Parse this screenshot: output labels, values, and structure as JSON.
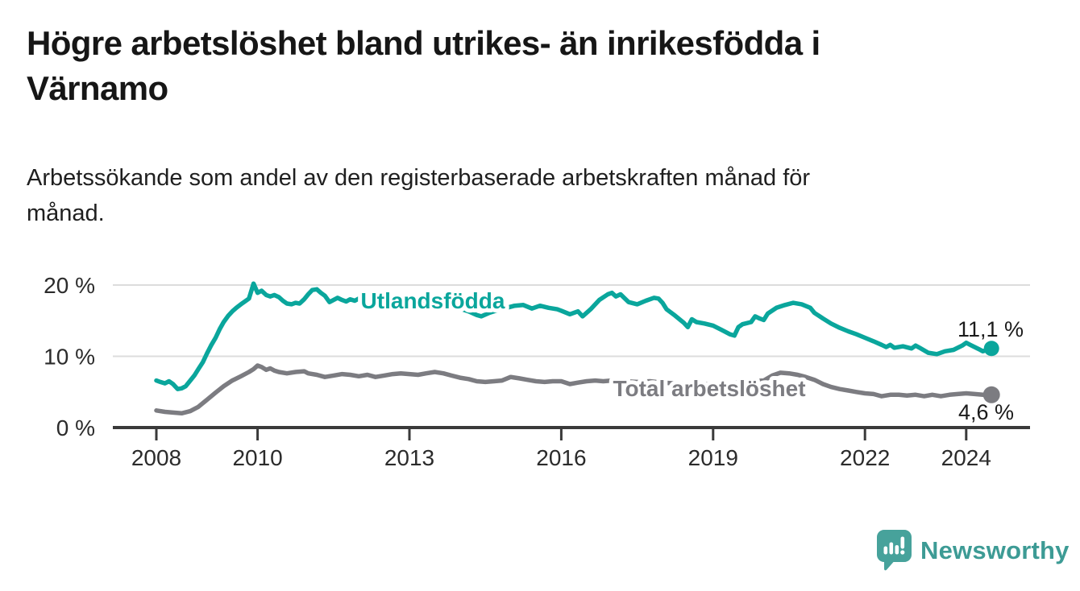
{
  "title": "Högre arbetslöshet bland utrikes- än inrikesfödda i\nVärnamo",
  "subtitle": "Arbetssökande som andel av den registerbaserade arbetskraften månad för\nmånad.",
  "branding": {
    "logo_text": "Newsworthy",
    "logo_icon": "speech-bubble-bar-chart-icon",
    "icon_color": "#47a29b",
    "text_color": "#3d9b95"
  },
  "colors": {
    "foreign_born_line": "#0aa69c",
    "total_line": "#7c7c81",
    "grid": "#dcdcdc",
    "axis": "#3a3a3a",
    "text_dark": "#1a1a1a"
  },
  "chart_data": {
    "type": "line",
    "title": "Högre arbetslöshet bland utrikes- än inrikesfödda i Värnamo",
    "subtitle": "Arbetssökande som andel av den registerbaserade arbetskraften månad för månad.",
    "xlabel": "",
    "ylabel": "",
    "grid": "horizontal",
    "legend": "inline-labels",
    "x_axis": {
      "range": [
        2007.15,
        2025.35
      ],
      "ticks": [
        2008,
        2010,
        2013,
        2016,
        2019,
        2022,
        2024
      ],
      "tick_labels": [
        "2008",
        "2010",
        "2013",
        "2016",
        "2019",
        "2022",
        "2024"
      ]
    },
    "y_axis": {
      "range": [
        0,
        22.6
      ],
      "ticks": [
        0,
        10,
        20
      ],
      "tick_labels": [
        "0 %",
        "10 %",
        "20 %"
      ]
    },
    "series": [
      {
        "name": "Utlandsfödda",
        "color": "#0aa69c",
        "end_value": 11.1,
        "end_label": "11,1 %",
        "points": [
          [
            2008.0,
            6.6
          ],
          [
            2008.08,
            6.4
          ],
          [
            2008.17,
            6.2
          ],
          [
            2008.25,
            6.5
          ],
          [
            2008.33,
            6.1
          ],
          [
            2008.42,
            5.4
          ],
          [
            2008.5,
            5.5
          ],
          [
            2008.58,
            5.8
          ],
          [
            2008.67,
            6.6
          ],
          [
            2008.75,
            7.3
          ],
          [
            2008.83,
            8.2
          ],
          [
            2008.92,
            9.2
          ],
          [
            2009.0,
            10.4
          ],
          [
            2009.08,
            11.5
          ],
          [
            2009.17,
            12.6
          ],
          [
            2009.25,
            13.8
          ],
          [
            2009.33,
            14.8
          ],
          [
            2009.42,
            15.7
          ],
          [
            2009.5,
            16.3
          ],
          [
            2009.58,
            16.8
          ],
          [
            2009.67,
            17.3
          ],
          [
            2009.75,
            17.7
          ],
          [
            2009.83,
            18.1
          ],
          [
            2009.92,
            20.2
          ],
          [
            2010.0,
            18.9
          ],
          [
            2010.08,
            19.2
          ],
          [
            2010.17,
            18.6
          ],
          [
            2010.25,
            18.4
          ],
          [
            2010.33,
            18.6
          ],
          [
            2010.42,
            18.3
          ],
          [
            2010.5,
            17.8
          ],
          [
            2010.58,
            17.4
          ],
          [
            2010.67,
            17.3
          ],
          [
            2010.75,
            17.5
          ],
          [
            2010.83,
            17.4
          ],
          [
            2010.92,
            18.0
          ],
          [
            2011.0,
            18.7
          ],
          [
            2011.08,
            19.3
          ],
          [
            2011.17,
            19.4
          ],
          [
            2011.25,
            18.9
          ],
          [
            2011.33,
            18.5
          ],
          [
            2011.42,
            17.6
          ],
          [
            2011.5,
            17.9
          ],
          [
            2011.58,
            18.2
          ],
          [
            2011.67,
            17.9
          ],
          [
            2011.75,
            17.7
          ],
          [
            2011.83,
            18.0
          ],
          [
            2011.92,
            17.8
          ],
          [
            2012.0,
            18.1
          ],
          [
            2012.17,
            17.7
          ],
          [
            2012.33,
            18.0
          ],
          [
            2012.5,
            17.7
          ],
          [
            2012.67,
            17.9
          ],
          [
            2012.83,
            17.6
          ],
          [
            2013.0,
            17.4
          ],
          [
            2013.17,
            17.2
          ],
          [
            2013.33,
            17.5
          ],
          [
            2013.5,
            17.2
          ],
          [
            2013.67,
            17.0
          ],
          [
            2013.83,
            16.9
          ],
          [
            2014.0,
            16.7
          ],
          [
            2014.17,
            16.3
          ],
          [
            2014.33,
            15.8
          ],
          [
            2014.42,
            15.6
          ],
          [
            2014.58,
            16.1
          ],
          [
            2014.75,
            16.5
          ],
          [
            2014.92,
            16.8
          ],
          [
            2015.08,
            17.1
          ],
          [
            2015.25,
            17.2
          ],
          [
            2015.42,
            16.7
          ],
          [
            2015.58,
            17.1
          ],
          [
            2015.75,
            16.8
          ],
          [
            2015.92,
            16.6
          ],
          [
            2016.0,
            16.4
          ],
          [
            2016.17,
            15.9
          ],
          [
            2016.33,
            16.3
          ],
          [
            2016.42,
            15.6
          ],
          [
            2016.58,
            16.6
          ],
          [
            2016.75,
            17.9
          ],
          [
            2016.92,
            18.7
          ],
          [
            2017.0,
            18.9
          ],
          [
            2017.08,
            18.4
          ],
          [
            2017.17,
            18.7
          ],
          [
            2017.33,
            17.6
          ],
          [
            2017.5,
            17.3
          ],
          [
            2017.67,
            17.8
          ],
          [
            2017.83,
            18.2
          ],
          [
            2017.92,
            18.1
          ],
          [
            2018.0,
            17.5
          ],
          [
            2018.08,
            16.6
          ],
          [
            2018.25,
            15.7
          ],
          [
            2018.42,
            14.7
          ],
          [
            2018.5,
            14.1
          ],
          [
            2018.58,
            15.2
          ],
          [
            2018.67,
            14.8
          ],
          [
            2018.83,
            14.6
          ],
          [
            2019.0,
            14.3
          ],
          [
            2019.17,
            13.7
          ],
          [
            2019.33,
            13.1
          ],
          [
            2019.42,
            12.9
          ],
          [
            2019.5,
            14.1
          ],
          [
            2019.58,
            14.5
          ],
          [
            2019.75,
            14.8
          ],
          [
            2019.83,
            15.6
          ],
          [
            2019.92,
            15.3
          ],
          [
            2020.0,
            15.1
          ],
          [
            2020.08,
            16.0
          ],
          [
            2020.25,
            16.8
          ],
          [
            2020.42,
            17.2
          ],
          [
            2020.58,
            17.5
          ],
          [
            2020.75,
            17.3
          ],
          [
            2020.92,
            16.8
          ],
          [
            2021.0,
            16.1
          ],
          [
            2021.17,
            15.3
          ],
          [
            2021.33,
            14.6
          ],
          [
            2021.5,
            14.0
          ],
          [
            2021.67,
            13.5
          ],
          [
            2021.83,
            13.1
          ],
          [
            2022.0,
            12.6
          ],
          [
            2022.17,
            12.1
          ],
          [
            2022.33,
            11.6
          ],
          [
            2022.42,
            11.3
          ],
          [
            2022.5,
            11.6
          ],
          [
            2022.58,
            11.2
          ],
          [
            2022.75,
            11.4
          ],
          [
            2022.92,
            11.1
          ],
          [
            2023.0,
            11.5
          ],
          [
            2023.08,
            11.2
          ],
          [
            2023.25,
            10.5
          ],
          [
            2023.42,
            10.3
          ],
          [
            2023.58,
            10.7
          ],
          [
            2023.75,
            10.9
          ],
          [
            2023.92,
            11.5
          ],
          [
            2024.0,
            11.9
          ],
          [
            2024.08,
            11.6
          ],
          [
            2024.25,
            11.0
          ],
          [
            2024.33,
            10.7
          ],
          [
            2024.42,
            10.9
          ],
          [
            2024.5,
            11.1
          ]
        ]
      },
      {
        "name": "Total arbetslöshet",
        "color": "#7c7c81",
        "end_value": 4.6,
        "end_label": "4,6 %",
        "points": [
          [
            2008.0,
            2.4
          ],
          [
            2008.17,
            2.2
          ],
          [
            2008.33,
            2.1
          ],
          [
            2008.5,
            2.0
          ],
          [
            2008.67,
            2.3
          ],
          [
            2008.83,
            2.9
          ],
          [
            2009.0,
            3.9
          ],
          [
            2009.17,
            4.9
          ],
          [
            2009.33,
            5.8
          ],
          [
            2009.5,
            6.6
          ],
          [
            2009.67,
            7.2
          ],
          [
            2009.83,
            7.8
          ],
          [
            2009.92,
            8.2
          ],
          [
            2010.0,
            8.7
          ],
          [
            2010.08,
            8.5
          ],
          [
            2010.17,
            8.1
          ],
          [
            2010.25,
            8.3
          ],
          [
            2010.33,
            8.0
          ],
          [
            2010.42,
            7.8
          ],
          [
            2010.58,
            7.6
          ],
          [
            2010.75,
            7.8
          ],
          [
            2010.92,
            7.9
          ],
          [
            2011.0,
            7.6
          ],
          [
            2011.17,
            7.4
          ],
          [
            2011.33,
            7.1
          ],
          [
            2011.5,
            7.3
          ],
          [
            2011.67,
            7.5
          ],
          [
            2011.83,
            7.4
          ],
          [
            2012.0,
            7.2
          ],
          [
            2012.17,
            7.4
          ],
          [
            2012.33,
            7.1
          ],
          [
            2012.5,
            7.3
          ],
          [
            2012.67,
            7.5
          ],
          [
            2012.83,
            7.6
          ],
          [
            2013.0,
            7.5
          ],
          [
            2013.17,
            7.4
          ],
          [
            2013.33,
            7.6
          ],
          [
            2013.5,
            7.8
          ],
          [
            2013.67,
            7.6
          ],
          [
            2013.83,
            7.3
          ],
          [
            2014.0,
            7.0
          ],
          [
            2014.17,
            6.8
          ],
          [
            2014.33,
            6.5
          ],
          [
            2014.5,
            6.4
          ],
          [
            2014.67,
            6.5
          ],
          [
            2014.83,
            6.6
          ],
          [
            2015.0,
            7.1
          ],
          [
            2015.17,
            6.9
          ],
          [
            2015.33,
            6.7
          ],
          [
            2015.5,
            6.5
          ],
          [
            2015.67,
            6.4
          ],
          [
            2015.83,
            6.5
          ],
          [
            2016.0,
            6.5
          ],
          [
            2016.17,
            6.1
          ],
          [
            2016.33,
            6.3
          ],
          [
            2016.5,
            6.5
          ],
          [
            2016.67,
            6.6
          ],
          [
            2016.83,
            6.5
          ],
          [
            2017.0,
            6.6
          ],
          [
            2017.25,
            6.5
          ],
          [
            2017.5,
            6.4
          ],
          [
            2017.75,
            6.5
          ],
          [
            2018.0,
            6.3
          ],
          [
            2018.25,
            6.2
          ],
          [
            2018.5,
            6.1
          ],
          [
            2018.75,
            6.2
          ],
          [
            2019.0,
            6.0
          ],
          [
            2019.25,
            6.1
          ],
          [
            2019.5,
            6.3
          ],
          [
            2019.75,
            6.5
          ],
          [
            2020.0,
            6.6
          ],
          [
            2020.17,
            7.3
          ],
          [
            2020.33,
            7.7
          ],
          [
            2020.5,
            7.6
          ],
          [
            2020.67,
            7.4
          ],
          [
            2020.83,
            7.1
          ],
          [
            2021.0,
            6.7
          ],
          [
            2021.17,
            6.1
          ],
          [
            2021.33,
            5.7
          ],
          [
            2021.5,
            5.4
          ],
          [
            2021.67,
            5.2
          ],
          [
            2021.83,
            5.0
          ],
          [
            2022.0,
            4.8
          ],
          [
            2022.17,
            4.7
          ],
          [
            2022.33,
            4.4
          ],
          [
            2022.5,
            4.6
          ],
          [
            2022.67,
            4.6
          ],
          [
            2022.83,
            4.5
          ],
          [
            2023.0,
            4.6
          ],
          [
            2023.17,
            4.4
          ],
          [
            2023.33,
            4.6
          ],
          [
            2023.5,
            4.4
          ],
          [
            2023.67,
            4.6
          ],
          [
            2023.83,
            4.7
          ],
          [
            2024.0,
            4.8
          ],
          [
            2024.17,
            4.7
          ],
          [
            2024.33,
            4.6
          ],
          [
            2024.5,
            4.6
          ]
        ]
      }
    ]
  }
}
